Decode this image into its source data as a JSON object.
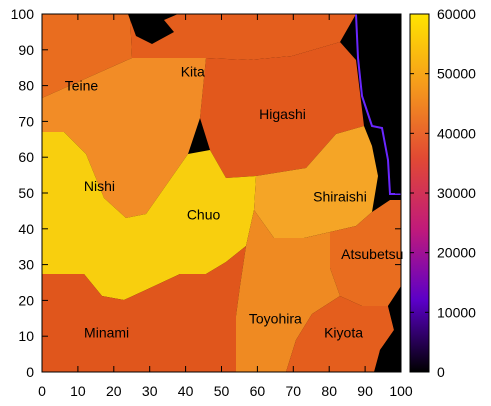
{
  "chart_data": {
    "type": "heatmap",
    "title": "",
    "xlabel": "",
    "ylabel": "",
    "xlim": [
      0,
      100
    ],
    "ylim": [
      0,
      100
    ],
    "x_ticks": [
      0,
      10,
      20,
      30,
      40,
      50,
      60,
      70,
      80,
      90,
      100
    ],
    "y_ticks": [
      0,
      10,
      20,
      30,
      40,
      50,
      60,
      70,
      80,
      90,
      100
    ],
    "colorbar": {
      "range": [
        0,
        60000
      ],
      "ticks": [
        0,
        10000,
        20000,
        30000,
        40000,
        50000,
        60000
      ],
      "palette": [
        "#000000",
        "#5b00c8",
        "#c11a7a",
        "#e24a33",
        "#f59a1c",
        "#ffe400"
      ]
    },
    "outside_color": "#000000",
    "regions": [
      {
        "name": "Teine",
        "x": 11,
        "y": 80,
        "value": 43000,
        "color": "#e96d1f"
      },
      {
        "name": "Kita",
        "x": 42,
        "y": 84,
        "value": 41000,
        "color": "#e45e1d"
      },
      {
        "name": "Higashi",
        "x": 67,
        "y": 72,
        "value": 40000,
        "color": "#e2581c"
      },
      {
        "name": "Nishi",
        "x": 16,
        "y": 52,
        "value": 48000,
        "color": "#f28c26"
      },
      {
        "name": "Chuo",
        "x": 45,
        "y": 44,
        "value": 58000,
        "color": "#f8cf0e"
      },
      {
        "name": "Shiraishi",
        "x": 83,
        "y": 49,
        "value": 52000,
        "color": "#f5a526"
      },
      {
        "name": "Atsubetsu",
        "x": 92,
        "y": 33,
        "value": 43000,
        "color": "#e96d1f"
      },
      {
        "name": "Minami",
        "x": 18,
        "y": 11,
        "value": 38000,
        "color": "#e0561c"
      },
      {
        "name": "Toyohira",
        "x": 65,
        "y": 15,
        "value": 46000,
        "color": "#ef8a22"
      },
      {
        "name": "Kiyota",
        "x": 84,
        "y": 11,
        "value": 41000,
        "color": "#e45e1d"
      }
    ]
  }
}
